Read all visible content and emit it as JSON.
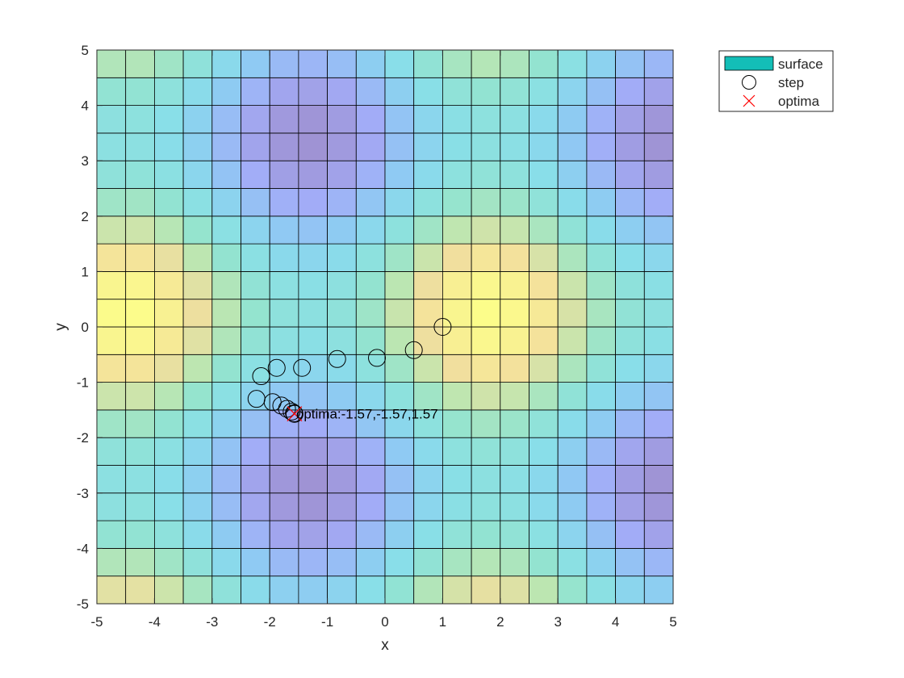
{
  "chart_data": {
    "type": "heatmap",
    "title": "",
    "xlabel": "x",
    "ylabel": "y",
    "xlim": [
      -5,
      5
    ],
    "ylim": [
      -5,
      5
    ],
    "xticks": [
      "-5",
      "-4",
      "-3",
      "-2",
      "-1",
      "0",
      "1",
      "2",
      "3",
      "4",
      "5"
    ],
    "yticks": [
      "-5",
      "-4",
      "-3",
      "-2",
      "-1",
      "0",
      "1",
      "2",
      "3",
      "4",
      "5"
    ],
    "grid_step": 0.5,
    "surface": "z = sin(x) + cos(y)",
    "colormap": "parula",
    "surface_alpha": 0.5,
    "legend": {
      "location": "northeast-outside",
      "entries": [
        "surface",
        "step",
        "optima"
      ]
    },
    "series": [
      {
        "name": "step",
        "marker": "circle",
        "color": "#000000",
        "x": [
          1.0,
          0.5,
          -0.14,
          -0.83,
          -1.44,
          -1.88,
          -2.15,
          -2.23,
          -1.95,
          -1.8,
          -1.7,
          -1.62,
          -1.58,
          -1.57
        ],
        "y": [
          0.0,
          -0.42,
          -0.56,
          -0.58,
          -0.74,
          -0.74,
          -0.89,
          -1.3,
          -1.36,
          -1.42,
          -1.48,
          -1.53,
          -1.56,
          -1.57
        ]
      },
      {
        "name": "optima",
        "marker": "x",
        "color": "#ff0000",
        "x": [
          -1.57
        ],
        "y": [
          -1.57
        ]
      }
    ],
    "annotation": {
      "text": "optima:-1.57,-1.57,1.57",
      "x": -1.57,
      "y": -1.57
    }
  },
  "colors": {
    "parula_low": "#3e26a8",
    "parula_mid": "#13beb7",
    "parula_high": "#f9fb15",
    "legend_surface": "#13beb7",
    "step": "#000000",
    "optima": "#ff0000"
  }
}
